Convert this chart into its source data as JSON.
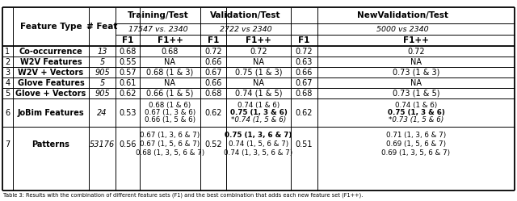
{
  "col_headers": {
    "feature_type": "Feature Type",
    "num_feat": "# Feat",
    "training_test": "Training/Test",
    "training_sub": "17547 vs. 2340",
    "validation_test": "Validation/Test",
    "validation_sub": "2722 vs 2340",
    "new_validation_test": "NewValidation/Test",
    "new_validation_sub": "5000 vs 2340",
    "f1": "F1",
    "f1pp": "F1++"
  },
  "rows": [
    {
      "num": "1",
      "feature": "Co-occurrence",
      "feat_count": "13",
      "train_f1": "0.68",
      "train_f1pp": "0.68",
      "val_f1": "0.72",
      "val_f1pp": "0.72",
      "newval_f1": "0.72",
      "newval_f1pp": "0.72",
      "multiline": false
    },
    {
      "num": "2",
      "feature": "W2V Features",
      "feat_count": "5",
      "train_f1": "0.55",
      "train_f1pp": "NA",
      "val_f1": "0.66",
      "val_f1pp": "NA",
      "newval_f1": "0.63",
      "newval_f1pp": "NA",
      "multiline": false
    },
    {
      "num": "3",
      "feature": "W2V + Vectors",
      "feat_count": "905",
      "train_f1": "0.57",
      "train_f1pp": "0.68 (1 & 3)",
      "val_f1": "0.67",
      "val_f1pp": "0.75 (1 & 3)",
      "newval_f1": "0.66",
      "newval_f1pp": "0.73 (1 & 3)",
      "multiline": false
    },
    {
      "num": "4",
      "feature": "Glove Features",
      "feat_count": "5",
      "train_f1": "0.61",
      "train_f1pp": "NA",
      "val_f1": "0.66",
      "val_f1pp": "NA",
      "newval_f1": "0.67",
      "newval_f1pp": "NA",
      "multiline": false
    },
    {
      "num": "5",
      "feature": "Glove + Vectors",
      "feat_count": "905",
      "train_f1": "0.62",
      "train_f1pp": "0.66 (1 & 5)",
      "val_f1": "0.68",
      "val_f1pp": "0.74 (1 & 5)",
      "newval_f1": "0.68",
      "newval_f1pp": "0.73 (1 & 5)",
      "multiline": false
    },
    {
      "num": "6",
      "feature": "JoBim Features",
      "feat_count": "24",
      "train_f1": "0.53",
      "train_f1pp": [
        "0.68 (1 & 6)",
        "0.67 (1, 3 & 6)",
        "0.66 (1, 5 & 6)"
      ],
      "train_f1pp_bold": [
        false,
        false,
        false
      ],
      "train_f1pp_italic": [
        false,
        false,
        false
      ],
      "val_f1": "0.62",
      "val_f1pp": [
        "0.74 (1 & 6)",
        "0.75 (1, 3 & 6)",
        "*0.74 (1, 5 & 6)"
      ],
      "val_f1pp_bold": [
        false,
        true,
        false
      ],
      "val_f1pp_italic": [
        false,
        false,
        true
      ],
      "newval_f1": "0.62",
      "newval_f1pp": [
        "0.74 (1 & 6)",
        "0.75 (1, 3 & 6)",
        "*0.73 (1, 5 & 6)"
      ],
      "newval_f1pp_bold": [
        false,
        true,
        false
      ],
      "newval_f1pp_italic": [
        false,
        false,
        true
      ],
      "multiline": true
    },
    {
      "num": "7",
      "feature": "Patterns",
      "feat_count": "53176",
      "train_f1": "0.56",
      "train_f1pp": [
        "0.67 (1, 3, 6 & 7)",
        "0.67 (1, 5, 6 & 7)",
        "0.68 (1, 3, 5, 6 & 7)"
      ],
      "train_f1pp_bold": [
        false,
        false,
        false
      ],
      "train_f1pp_italic": [
        false,
        false,
        false
      ],
      "val_f1": "0.52",
      "val_f1pp": [
        "0.75 (1, 3, 6 & 7)",
        "0.74 (1, 5, 6 & 7)",
        "0.74 (1, 3, 5, 6 & 7)"
      ],
      "val_f1pp_bold": [
        true,
        false,
        false
      ],
      "val_f1pp_italic": [
        false,
        false,
        false
      ],
      "newval_f1": "0.51",
      "newval_f1pp": [
        "0.71 (1, 3, 6 & 7)",
        "0.69 (1, 5, 6 & 7)",
        "0.69 (1, 3, 5, 6 & 7)"
      ],
      "newval_f1pp_bold": [
        false,
        false,
        false
      ],
      "newval_f1pp_italic": [
        false,
        false,
        false
      ],
      "multiline": true
    }
  ],
  "background_color": "#ffffff"
}
